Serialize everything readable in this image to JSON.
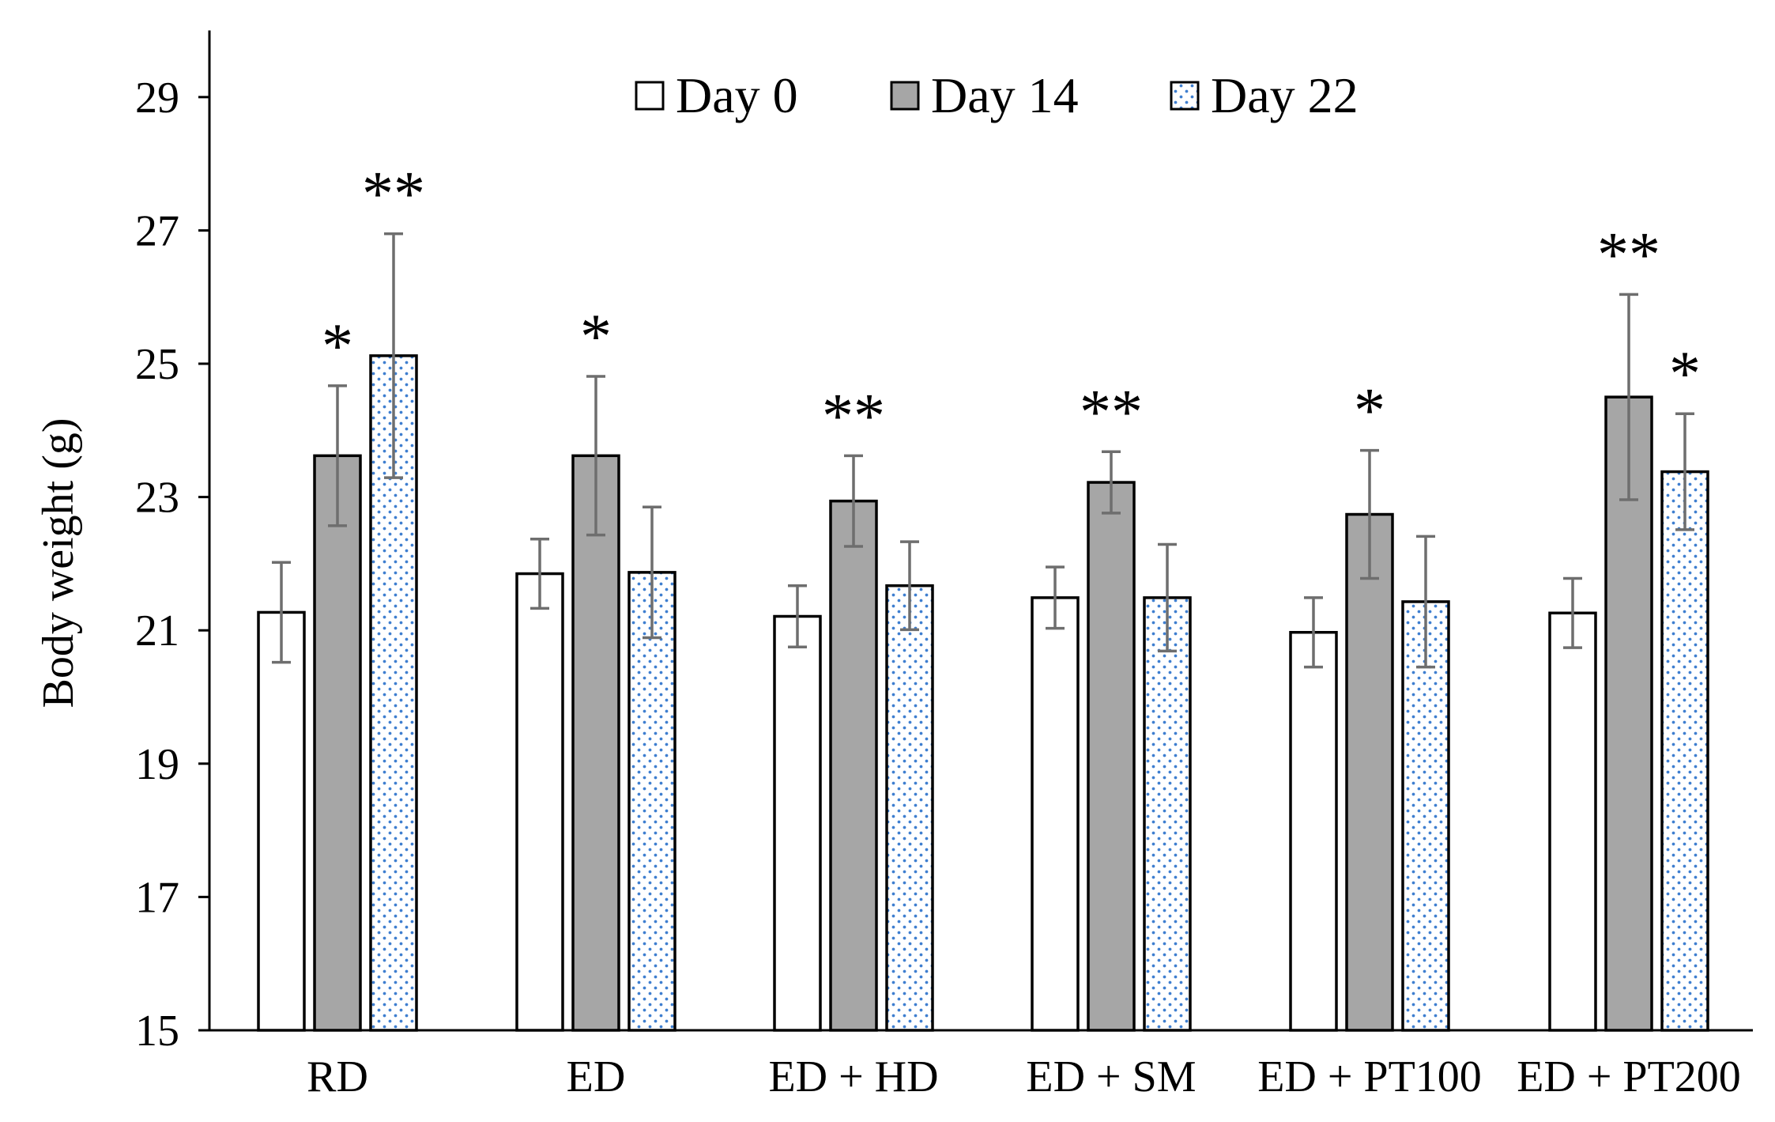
{
  "chart_data": {
    "type": "bar",
    "title": "",
    "xlabel": "",
    "ylabel": "Body weight (g)",
    "ylim": [
      15,
      30
    ],
    "yticks": [
      15,
      17,
      19,
      21,
      23,
      25,
      27,
      29
    ],
    "legend_position": "top-center",
    "categories": [
      "RD",
      "ED",
      "ED + HD",
      "ED + SM",
      "ED + PT100",
      "ED + PT200"
    ],
    "series": [
      {
        "name": "Day 0",
        "fill": "#ffffff",
        "pattern": "none",
        "values": [
          21.27,
          21.85,
          21.21,
          21.49,
          20.97,
          21.26
        ],
        "errors": [
          0.75,
          0.52,
          0.46,
          0.46,
          0.52,
          0.52
        ],
        "significance": [
          "",
          "",
          "",
          "",
          "",
          ""
        ]
      },
      {
        "name": "Day 14",
        "fill": "#a6a6a6",
        "pattern": "none",
        "values": [
          23.62,
          23.62,
          22.94,
          23.22,
          22.74,
          24.5
        ],
        "errors": [
          1.05,
          1.19,
          0.68,
          0.46,
          0.96,
          1.54
        ],
        "significance": [
          "*",
          "*",
          "**",
          "**",
          "*",
          "**"
        ]
      },
      {
        "name": "Day 22",
        "fill": "#ffffff",
        "pattern": "blue-dots",
        "dot_color": "#3f7fd0",
        "values": [
          25.12,
          21.87,
          21.67,
          21.49,
          21.43,
          23.38
        ],
        "errors": [
          1.83,
          0.98,
          0.66,
          0.8,
          0.98,
          0.87
        ],
        "significance": [
          "**",
          "",
          "",
          "",
          "",
          "*"
        ]
      }
    ]
  }
}
